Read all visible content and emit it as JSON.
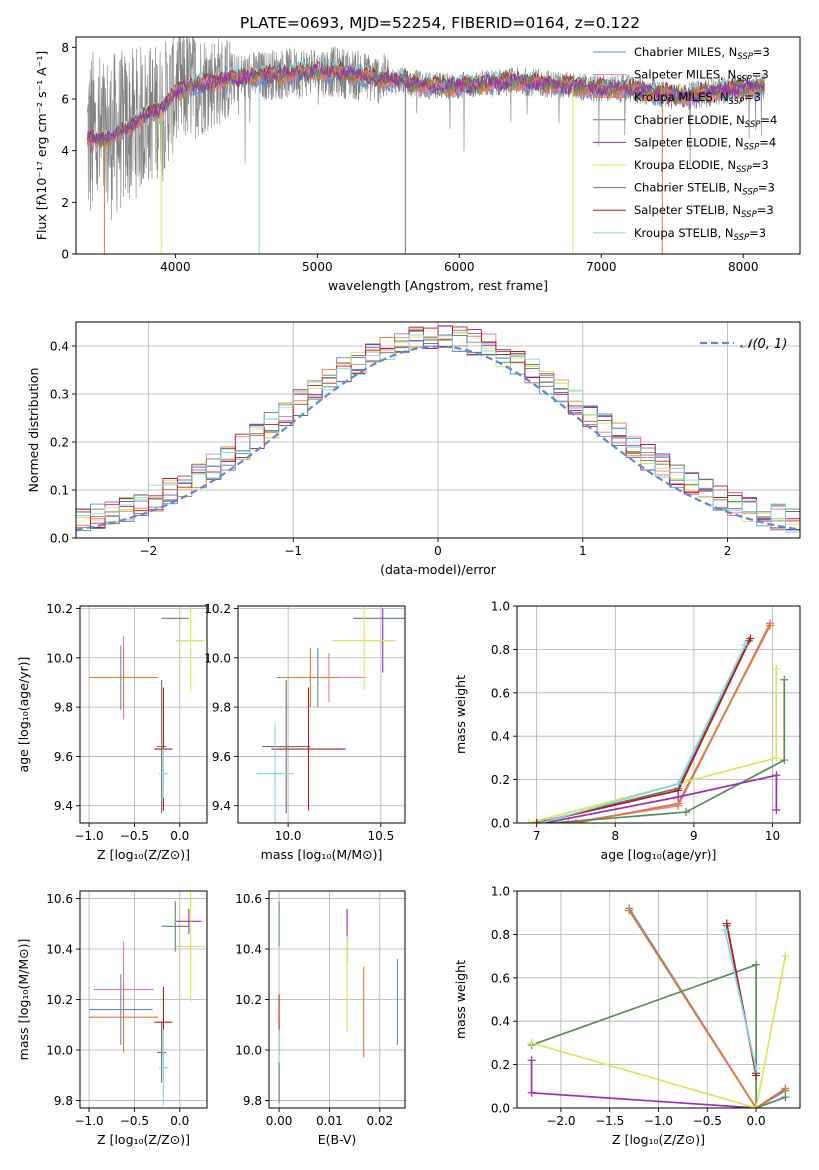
{
  "title": "PLATE=0693, MJD=52254, FIBERID=0164, z=0.122",
  "colors": {
    "chabrier_miles": "#5b8bd6",
    "salpeter_miles": "#ef7ba0",
    "kroupa_miles": "#e07a2c",
    "chabrier_elodie": "#5b8a5b",
    "salpeter_elodie": "#9b30b4",
    "kroupa_elodie": "#d4ea5a",
    "chabrier_stelib": "#6f6f6f",
    "salpeter_stelib": "#b71c1c",
    "kroupa_stelib": "#7fd8e4",
    "data": "#808080",
    "normal": "#5b8bd6"
  },
  "chart_data": [
    {
      "id": "spectrum",
      "type": "line",
      "xlabel": "wavelength [Angstrom, rest frame]",
      "ylabel": "Flux [fλ10⁻¹⁷ erg cm⁻² s⁻¹ A⁻¹]",
      "xlim": [
        3300,
        8400
      ],
      "ylim": [
        0,
        8.4
      ],
      "xticks": [
        4000,
        5000,
        6000,
        7000,
        8000
      ],
      "yticks": [
        0,
        2,
        4,
        6,
        8
      ],
      "grid": false,
      "legend_position": "right",
      "continuum": {
        "x": [
          3380,
          3500,
          3600,
          3700,
          3800,
          3900,
          4000,
          4100,
          4200,
          4400,
          4600,
          4800,
          5000,
          5200,
          5400,
          5600,
          5800,
          6000,
          6200,
          6400,
          6600,
          6800,
          7000,
          7200,
          7400,
          7600,
          7800,
          8000,
          8150
        ],
        "y": [
          4.5,
          4.4,
          4.7,
          5.0,
          5.4,
          5.6,
          6.3,
          6.5,
          6.6,
          6.8,
          6.9,
          7.0,
          7.1,
          7.0,
          6.8,
          6.7,
          6.5,
          6.5,
          6.6,
          6.7,
          6.6,
          6.5,
          6.4,
          6.4,
          6.2,
          6.1,
          6.3,
          6.4,
          6.5
        ]
      },
      "series": [
        {
          "name": "Chabrier MILES, N_SSP=3",
          "label": "Chabrier MILES, N",
          "sub": "SSP",
          "suffix": "=3",
          "color": "chabrier_miles"
        },
        {
          "name": "Salpeter MILES, N_SSP=3",
          "label": "Salpeter MILES, N",
          "sub": "SSP",
          "suffix": "=3",
          "color": "salpeter_miles"
        },
        {
          "name": "Kroupa MILES, N_SSP=3",
          "label": "Kroupa MILES, N",
          "sub": "SSP",
          "suffix": "=3",
          "color": "kroupa_miles"
        },
        {
          "name": "Chabrier ELODIE, N_SSP=4",
          "label": "Chabrier ELODIE, N",
          "sub": "SSP",
          "suffix": "=4",
          "color": "chabrier_elodie"
        },
        {
          "name": "Salpeter ELODIE, N_SSP=4",
          "label": "Salpeter ELODIE, N",
          "sub": "SSP",
          "suffix": "=4",
          "color": "salpeter_elodie"
        },
        {
          "name": "Kroupa ELODIE, N_SSP=3",
          "label": "Kroupa ELODIE, N",
          "sub": "SSP",
          "suffix": "=3",
          "color": "kroupa_elodie"
        },
        {
          "name": "Chabrier STELIB, N_SSP=3",
          "label": "Chabrier STELIB, N",
          "sub": "SSP",
          "suffix": "=3",
          "color": "chabrier_stelib"
        },
        {
          "name": "Salpeter STELIB, N_SSP=3",
          "label": "Salpeter STELIB, N",
          "sub": "SSP",
          "suffix": "=3",
          "color": "salpeter_stelib"
        },
        {
          "name": "Kroupa STELIB, N_SSP=3",
          "label": "Kroupa STELIB, N",
          "sub": "SSP",
          "suffix": "=3",
          "color": "kroupa_stelib"
        }
      ],
      "drops": [
        {
          "x": 3500,
          "color": "kroupa_miles"
        },
        {
          "x": 3900,
          "color": "kroupa_elodie"
        },
        {
          "x": 4590,
          "color": "kroupa_stelib"
        },
        {
          "x": 5620,
          "color": "chabrier_stelib"
        },
        {
          "x": 6800,
          "color": "kroupa_elodie"
        },
        {
          "x": 7430,
          "color": "kroupa_miles"
        }
      ]
    },
    {
      "id": "residuals",
      "type": "histogram",
      "xlabel": "(data-model)/error",
      "ylabel": "Normed distribution",
      "xlim": [
        -2.5,
        2.5
      ],
      "ylim": [
        0,
        0.45
      ],
      "xticks": [
        -2,
        -1,
        0,
        1,
        2
      ],
      "yticks": [
        0.0,
        0.1,
        0.2,
        0.3,
        0.4
      ],
      "grid": true,
      "legend_position": "top-right",
      "normal_label": "𝒩(0, 1)",
      "bin_width": 0.1
    },
    {
      "id": "age_vs_Z",
      "type": "errorbar",
      "xlabel": "Z [log₁₀(Z/Z⊙)]",
      "ylabel": "age  [log₁₀(age/yr)]",
      "xlim": [
        -1.1,
        0.3
      ],
      "ylim": [
        9.33,
        10.21
      ],
      "xticks": [
        -1.0,
        -0.5,
        0.0
      ],
      "yticks": [
        9.4,
        9.6,
        9.8,
        10.0,
        10.2
      ],
      "grid": true,
      "points": [
        {
          "color": "chabrier_miles",
          "x": -0.65,
          "y": 9.92,
          "xerr": 0.35,
          "yerr": 0.13
        },
        {
          "color": "salpeter_miles",
          "x": -0.62,
          "y": 9.92,
          "xerr": 0.33,
          "yerr": 0.17
        },
        {
          "color": "kroupa_miles",
          "x": -0.62,
          "y": 9.92,
          "xerr": 0.38,
          "yerr": 0.12
        },
        {
          "color": "chabrier_elodie",
          "x": -0.05,
          "y": 10.16,
          "xerr": 0.15,
          "yerr": 0.0
        },
        {
          "color": "salpeter_elodie",
          "x": 0.1,
          "y": 10.07,
          "xerr": 0.14,
          "yerr": 0.0
        },
        {
          "color": "kroupa_elodie",
          "x": 0.12,
          "y": 10.07,
          "xerr": 0.16,
          "yerr": 0.21
        },
        {
          "color": "chabrier_stelib",
          "x": -0.2,
          "y": 9.64,
          "xerr": 0.05,
          "yerr": 0.27
        },
        {
          "color": "salpeter_stelib",
          "x": -0.18,
          "y": 9.63,
          "xerr": 0.1,
          "yerr": 0.25
        },
        {
          "color": "kroupa_stelib",
          "x": -0.18,
          "y": 9.53,
          "xerr": 0.05,
          "yerr": 0.1
        }
      ]
    },
    {
      "id": "age_vs_mass",
      "type": "errorbar",
      "xlabel": "mass [log₁₀(M/M⊙)]",
      "ylabel": "",
      "xlim": [
        9.73,
        10.63
      ],
      "ylim": [
        9.33,
        10.21
      ],
      "xticks": [
        10.0,
        10.5
      ],
      "yticks": [
        9.4,
        9.6,
        9.8,
        10.0,
        10.2
      ],
      "grid": true,
      "points": [
        {
          "color": "chabrier_miles",
          "x": 10.16,
          "y": 9.92,
          "xerr": 0.22,
          "yerr": 0.12
        },
        {
          "color": "salpeter_miles",
          "x": 10.22,
          "y": 9.92,
          "xerr": 0.2,
          "yerr": 0.1
        },
        {
          "color": "kroupa_miles",
          "x": 10.12,
          "y": 9.92,
          "xerr": 0.16,
          "yerr": 0.12
        },
        {
          "color": "chabrier_elodie",
          "x": 10.49,
          "y": 10.16,
          "xerr": 0.14,
          "yerr": 0.0
        },
        {
          "color": "salpeter_elodie",
          "x": 10.51,
          "y": 10.07,
          "xerr": 0.05,
          "yerr": 0.13
        },
        {
          "color": "kroupa_elodie",
          "x": 10.41,
          "y": 10.07,
          "xerr": 0.17,
          "yerr": 0.2
        },
        {
          "color": "chabrier_stelib",
          "x": 9.99,
          "y": 9.64,
          "xerr": 0.13,
          "yerr": 0.27
        },
        {
          "color": "salpeter_stelib",
          "x": 10.11,
          "y": 9.63,
          "xerr": 0.2,
          "yerr": 0.25
        },
        {
          "color": "kroupa_stelib",
          "x": 9.93,
          "y": 9.53,
          "xerr": 0.1,
          "yerr": 0.2
        }
      ]
    },
    {
      "id": "massweight_vs_age",
      "type": "line",
      "xlabel": "age  [log₁₀(age/yr)]",
      "ylabel": "mass weight",
      "xlim": [
        6.75,
        10.35
      ],
      "ylim": [
        0,
        1.0
      ],
      "xticks": [
        7,
        8,
        9,
        10
      ],
      "yticks": [
        0.0,
        0.2,
        0.4,
        0.6,
        0.8,
        1.0
      ],
      "grid": true,
      "series": [
        {
          "color": "chabrier_miles",
          "x": [
            7.4,
            8.8,
            9.97
          ],
          "y": [
            0.0,
            0.08,
            0.92
          ]
        },
        {
          "color": "salpeter_miles",
          "x": [
            7.4,
            8.8,
            9.97
          ],
          "y": [
            0.0,
            0.08,
            0.92
          ]
        },
        {
          "color": "kroupa_miles",
          "x": [
            7.5,
            8.8,
            9.97
          ],
          "y": [
            0.0,
            0.09,
            0.91
          ]
        },
        {
          "color": "chabrier_elodie",
          "x": [
            7.2,
            8.9,
            10.15,
            10.15
          ],
          "y": [
            0.0,
            0.05,
            0.29,
            0.66
          ]
        },
        {
          "color": "salpeter_elodie",
          "x": [
            7.1,
            8.8,
            10.05,
            10.05
          ],
          "y": [
            0.0,
            0.12,
            0.22,
            0.06
          ]
        },
        {
          "color": "kroupa_elodie",
          "x": [
            6.9,
            10.05,
            10.05
          ],
          "y": [
            0.0,
            0.3,
            0.71
          ]
        },
        {
          "color": "chabrier_stelib",
          "x": [
            7.0,
            8.8,
            9.7
          ],
          "y": [
            0.0,
            0.16,
            0.84
          ]
        },
        {
          "color": "salpeter_stelib",
          "x": [
            7.0,
            8.8,
            9.72
          ],
          "y": [
            0.0,
            0.15,
            0.85
          ]
        },
        {
          "color": "kroupa_stelib",
          "x": [
            7.05,
            8.8,
            9.65
          ],
          "y": [
            0.0,
            0.18,
            0.82
          ]
        }
      ]
    },
    {
      "id": "mass_vs_Z",
      "type": "errorbar",
      "xlabel": "Z [log₁₀(Z/Z⊙)]",
      "ylabel": "mass [log₁₀(M/M⊙)]",
      "xlim": [
        -1.1,
        0.3
      ],
      "ylim": [
        9.77,
        10.63
      ],
      "xticks": [
        -1.0,
        -0.5,
        0.0
      ],
      "yticks": [
        9.8,
        10.0,
        10.2,
        10.4,
        10.6
      ],
      "grid": true,
      "points": [
        {
          "color": "chabrier_miles",
          "x": -0.65,
          "y": 10.16,
          "xerr": 0.35,
          "yerr": 0.14
        },
        {
          "color": "salpeter_miles",
          "x": -0.62,
          "y": 10.24,
          "xerr": 0.33,
          "yerr": 0.19
        },
        {
          "color": "kroupa_miles",
          "x": -0.62,
          "y": 10.13,
          "xerr": 0.38,
          "yerr": 0.14
        },
        {
          "color": "chabrier_elodie",
          "x": -0.05,
          "y": 10.49,
          "xerr": 0.15,
          "yerr": 0.1
        },
        {
          "color": "salpeter_elodie",
          "x": 0.1,
          "y": 10.51,
          "xerr": 0.14,
          "yerr": 0.05
        },
        {
          "color": "kroupa_elodie",
          "x": 0.12,
          "y": 10.41,
          "xerr": 0.16,
          "yerr": 0.22
        },
        {
          "color": "chabrier_stelib",
          "x": -0.2,
          "y": 9.99,
          "xerr": 0.05,
          "yerr": 0.12
        },
        {
          "color": "salpeter_stelib",
          "x": -0.18,
          "y": 10.11,
          "xerr": 0.1,
          "yerr": 0.14
        },
        {
          "color": "kroupa_stelib",
          "x": -0.18,
          "y": 9.93,
          "xerr": 0.05,
          "yerr": 0.15
        }
      ]
    },
    {
      "id": "mass_vs_ebv",
      "type": "errorbar",
      "xlabel": "E(B-V)",
      "ylabel": "",
      "xlim": [
        -0.002,
        0.025
      ],
      "ylim": [
        9.77,
        10.63
      ],
      "xticks": [
        0.0,
        0.01,
        0.02
      ],
      "yticks": [
        9.8,
        10.0,
        10.2,
        10.4,
        10.6
      ],
      "grid": true,
      "points": [
        {
          "color": "chabrier_miles",
          "x": 0.0235,
          "y": 10.19,
          "xerr": 0.0,
          "yerr": 0.17
        },
        {
          "color": "salpeter_elodie",
          "x": 0.0135,
          "y": 10.45,
          "xerr": 0.0,
          "yerr": 0.11
        },
        {
          "color": "kroupa_elodie",
          "x": 0.0135,
          "y": 10.26,
          "xerr": 0.0,
          "yerr": 0.19
        },
        {
          "color": "kroupa_miles",
          "x": 0.0168,
          "y": 10.15,
          "xerr": 0.0,
          "yerr": 0.18
        },
        {
          "color": "chabrier_elodie",
          "x": 0.0,
          "y": 10.5,
          "xerr": 0.0,
          "yerr": 0.09
        },
        {
          "color": "salpeter_stelib",
          "x": 0.0,
          "y": 10.1,
          "xerr": 0.0,
          "yerr": 0.12
        },
        {
          "color": "kroupa_stelib",
          "x": 0.0,
          "y": 9.93,
          "xerr": 0.0,
          "yerr": 0.15
        },
        {
          "color": "chabrier_stelib",
          "x": 0.0,
          "y": 9.87,
          "xerr": 0.0,
          "yerr": 0.08
        }
      ]
    },
    {
      "id": "massweight_vs_Z",
      "type": "line",
      "xlabel": "Z [log₁₀(Z/Z⊙)]",
      "ylabel": "mass weight",
      "xlim": [
        -2.45,
        0.45
      ],
      "ylim": [
        0,
        1.0
      ],
      "xticks": [
        -2.0,
        -1.5,
        -1.0,
        -0.5,
        0.0
      ],
      "yticks": [
        0.0,
        0.2,
        0.4,
        0.6,
        0.8,
        1.0
      ],
      "grid": true,
      "series": [
        {
          "color": "chabrier_miles",
          "x": [
            -1.3,
            0.0,
            0.3
          ],
          "y": [
            0.92,
            0.0,
            0.08
          ]
        },
        {
          "color": "salpeter_miles",
          "x": [
            -1.3,
            0.0,
            0.3
          ],
          "y": [
            0.91,
            0.0,
            0.09
          ]
        },
        {
          "color": "kroupa_miles",
          "x": [
            -1.3,
            0.0,
            0.3
          ],
          "y": [
            0.91,
            0.0,
            0.09
          ]
        },
        {
          "color": "chabrier_elodie",
          "x": [
            -2.3,
            0.0,
            0.0,
            0.3
          ],
          "y": [
            0.29,
            0.66,
            0.0,
            0.05
          ]
        },
        {
          "color": "salpeter_elodie",
          "x": [
            -2.3,
            -2.3,
            0.0
          ],
          "y": [
            0.22,
            0.07,
            0.0
          ]
        },
        {
          "color": "kroupa_elodie",
          "x": [
            -2.3,
            0.0,
            0.3
          ],
          "y": [
            0.3,
            0.0,
            0.7
          ]
        },
        {
          "color": "chabrier_stelib",
          "x": [
            -0.3,
            0.0,
            0.0
          ],
          "y": [
            0.84,
            0.16,
            0.16
          ]
        },
        {
          "color": "salpeter_stelib",
          "x": [
            -0.3,
            0.0
          ],
          "y": [
            0.85,
            0.15
          ]
        },
        {
          "color": "kroupa_stelib",
          "x": [
            -0.32,
            0.0
          ],
          "y": [
            0.82,
            0.18
          ]
        }
      ]
    }
  ]
}
